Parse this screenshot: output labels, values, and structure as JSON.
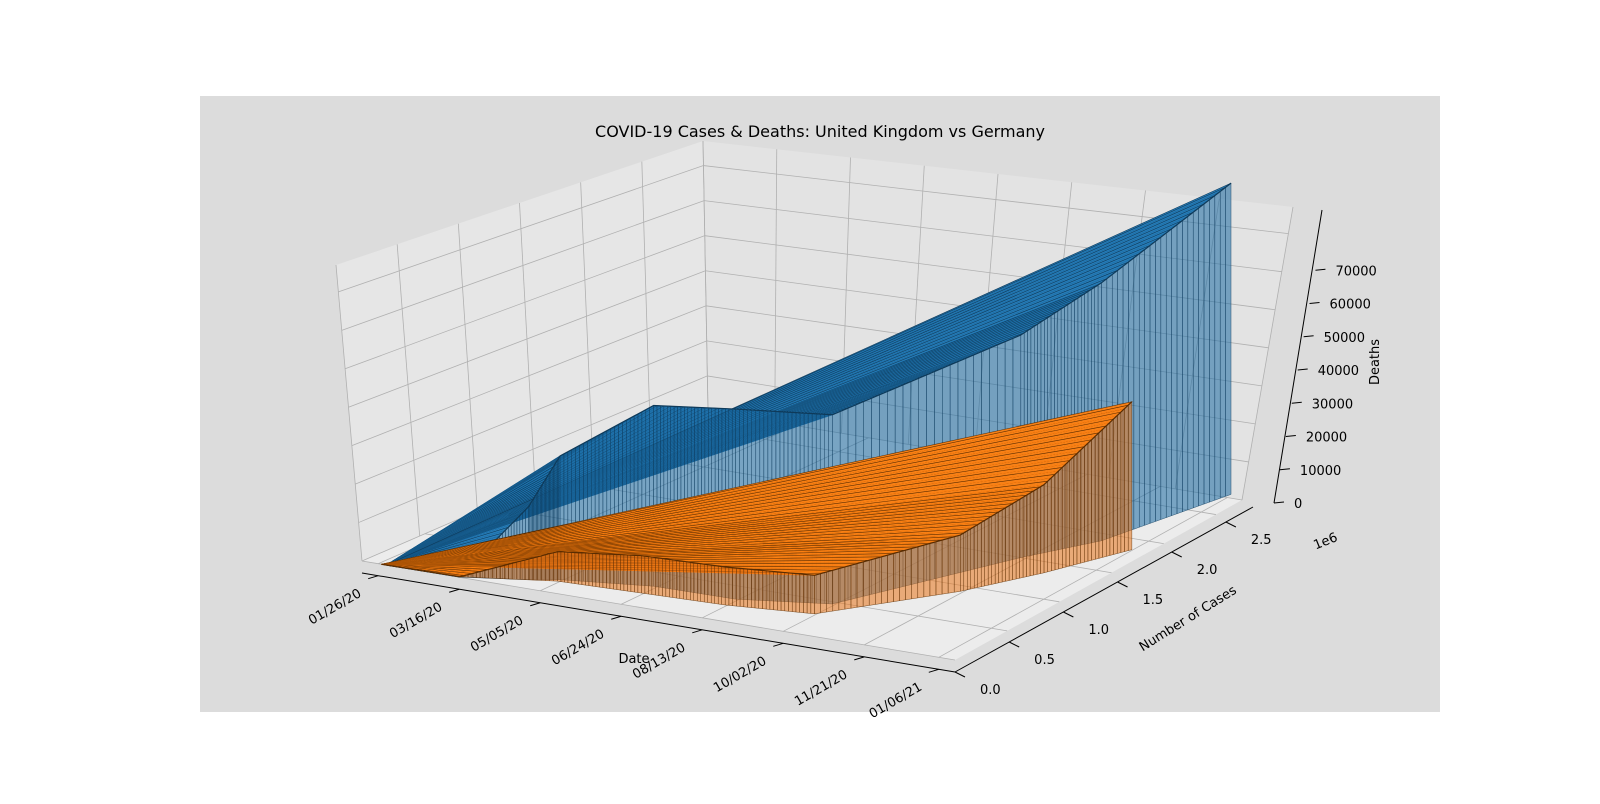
{
  "chart_data": {
    "type": "surface3d",
    "title": "COVID-19 Cases & Deaths: United Kingdom vs Germany",
    "xlabel": "Date",
    "ylabel": "Number of Cases",
    "zlabel": "Deaths",
    "y_offset_label": "1e6",
    "x_ticks": [
      "01/26/20",
      "03/16/20",
      "05/05/20",
      "06/24/20",
      "08/13/20",
      "10/02/20",
      "11/21/20",
      "01/06/21"
    ],
    "y_ticks": [
      "0.0",
      "0.5",
      "1.0",
      "1.5",
      "2.0",
      "2.5"
    ],
    "y_tick_values": [
      0,
      0.5,
      1.0,
      1.5,
      2.0,
      2.5
    ],
    "z_ticks": [
      "0",
      "10000",
      "20000",
      "30000",
      "40000",
      "50000",
      "60000",
      "70000"
    ],
    "z_tick_values": [
      0,
      10000,
      20000,
      30000,
      40000,
      50000,
      60000,
      70000
    ],
    "xlim": [
      "01/16/20",
      "01/16/21"
    ],
    "ylim": [
      0,
      2.75
    ],
    "zlim": [
      0,
      77000
    ],
    "grid": true,
    "series": [
      {
        "name": "United Kingdom",
        "color": "#1f77b4",
        "x": [
          "01/31/20",
          "03/16/20",
          "04/20/20",
          "05/05/20",
          "06/24/20",
          "08/13/20",
          "10/02/20",
          "11/21/20",
          "12/15/20",
          "01/06/21"
        ],
        "cases": [
          0,
          0.002,
          0.12,
          0.19,
          0.31,
          0.32,
          0.47,
          1.5,
          1.9,
          2.8
        ],
        "deaths": [
          0,
          50,
          17000,
          29000,
          43000,
          46000,
          46500,
          55000,
          64000,
          77000
        ]
      },
      {
        "name": "Germany",
        "color": "#ff7f0e",
        "x": [
          "01/28/20",
          "03/16/20",
          "05/05/20",
          "06/24/20",
          "08/13/20",
          "10/02/20",
          "11/21/20",
          "12/15/20",
          "01/06/21"
        ],
        "cases": [
          0,
          0.007,
          0.165,
          0.193,
          0.22,
          0.3,
          0.92,
          1.35,
          1.85
        ],
        "deaths": [
          0,
          15,
          6900,
          8900,
          9200,
          9500,
          14000,
          22000,
          37000
        ]
      }
    ]
  }
}
